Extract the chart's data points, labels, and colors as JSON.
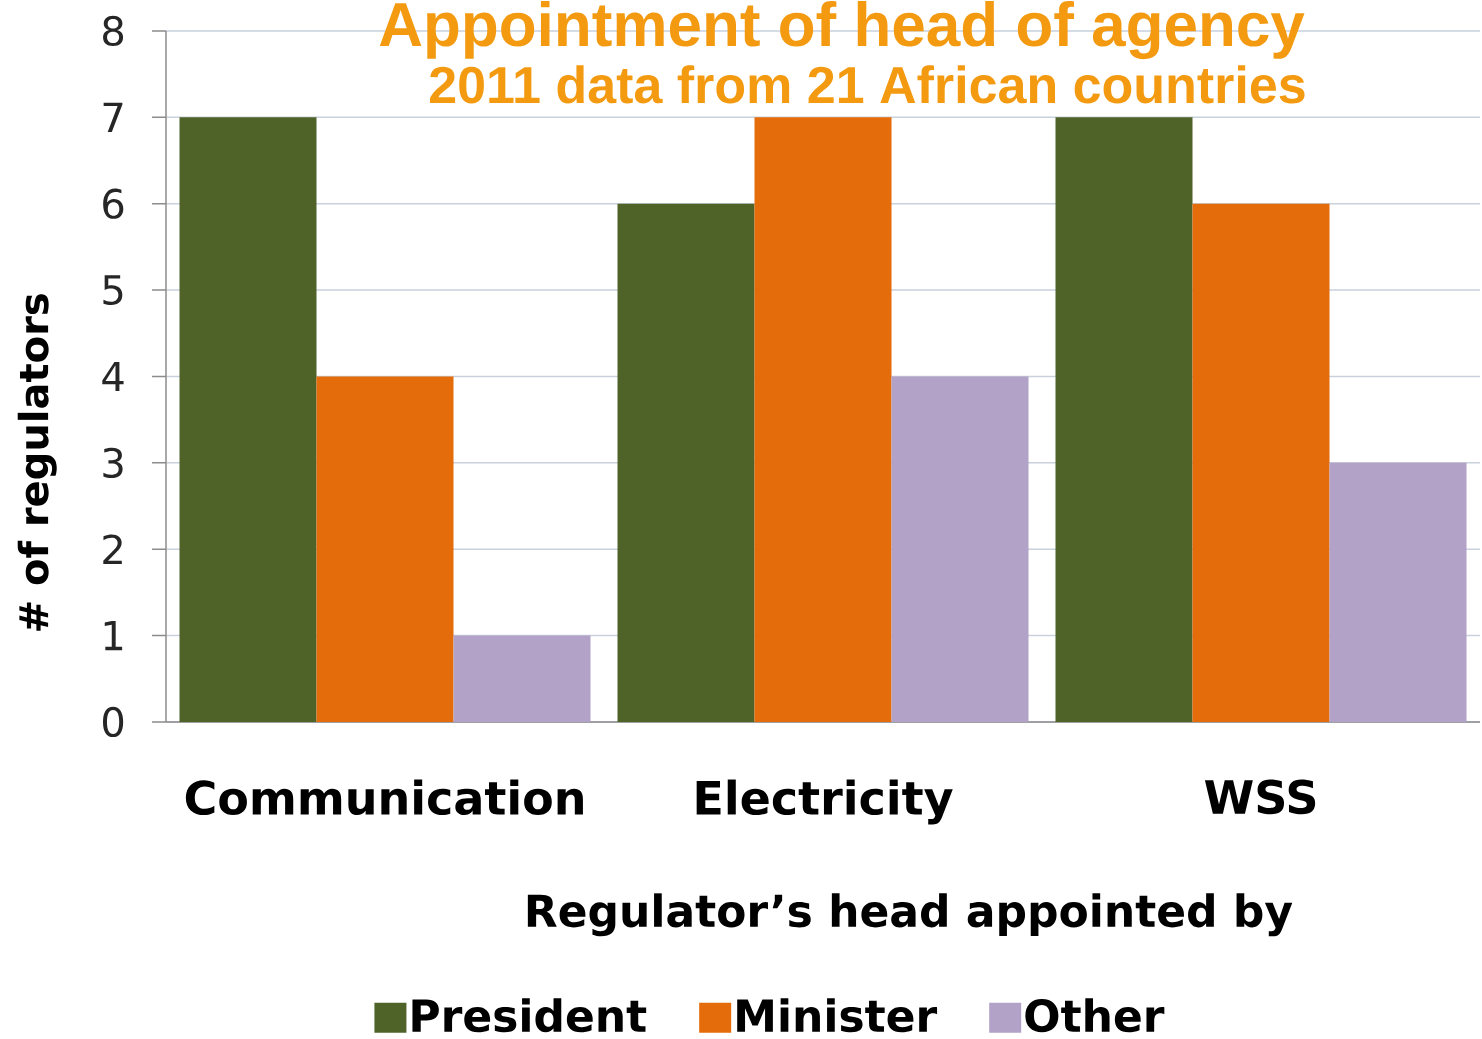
{
  "chart_data": {
    "type": "bar",
    "title": "Appointment of head of agency",
    "subtitle": "2011 data from 21 African countries",
    "xlabel": "Regulator’s head appointed by",
    "ylabel": "# of regulators",
    "categories": [
      "Communication",
      "Electricity",
      "WSS"
    ],
    "series": [
      {
        "name": "President",
        "color": "#4f6228",
        "values": [
          7,
          6,
          7
        ]
      },
      {
        "name": "Minister",
        "color": "#e46c0a",
        "values": [
          4,
          7,
          6
        ]
      },
      {
        "name": "Other",
        "color": "#b3a2c7",
        "values": [
          1,
          4,
          3
        ]
      }
    ],
    "ylim": [
      0,
      8
    ],
    "yticks": [
      0,
      1,
      2,
      3,
      4,
      5,
      6,
      7,
      8
    ],
    "grid": "y",
    "legend": "bottom"
  }
}
